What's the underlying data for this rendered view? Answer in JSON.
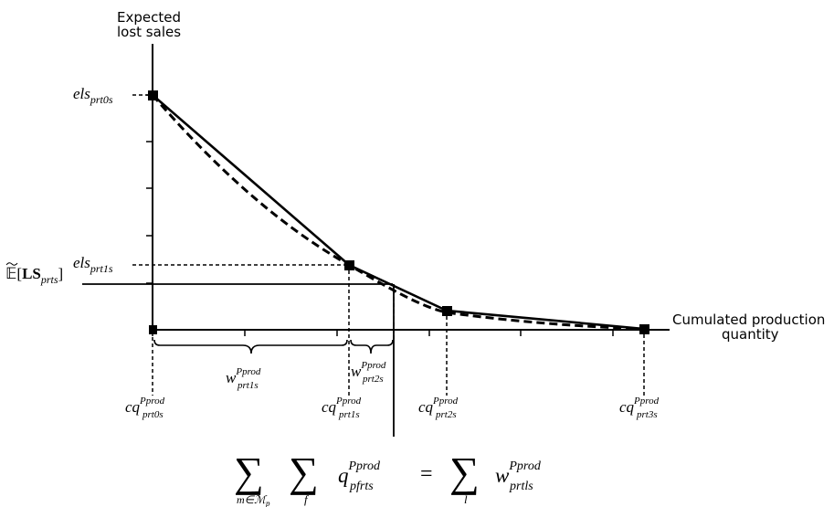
{
  "axes": {
    "y_label_line1": "Expected",
    "y_label_line2": "lost sales",
    "x_label_line1": "Cumulated production",
    "x_label_line2": "quantity"
  },
  "y_labels": {
    "els0": {
      "base": "els",
      "sub": "prt0s"
    },
    "els1": {
      "base": "els",
      "sub": "prt1s"
    },
    "expected": {
      "prefix": "𝔼[",
      "bold": "LS",
      "sub": "prts",
      "suffix": "]"
    }
  },
  "x_labels": [
    {
      "base": "cq",
      "sup": "Pprod",
      "sub": "prt0s"
    },
    {
      "base": "cq",
      "sup": "Pprod",
      "sub": "prt1s"
    },
    {
      "base": "cq",
      "sup": "Pprod",
      "sub": "prt2s"
    },
    {
      "base": "cq",
      "sup": "Pprod",
      "sub": "prt3s"
    }
  ],
  "widths": [
    {
      "base": "w",
      "sup": "Pprod",
      "sub": "prt1s"
    },
    {
      "base": "w",
      "sup": "Pprod",
      "sub": "prt2s"
    }
  ],
  "formula": {
    "sum1_index": "m∈ℳ",
    "sum1_index_sub": "p",
    "sum2_index": "f",
    "q_base": "q",
    "q_sup": "Pprod",
    "q_sub": "pfrts",
    "equals": "=",
    "sum3_index": "l",
    "w_base": "w",
    "w_sup": "Pprod",
    "w_sub": "prtls",
    "sigma": "∑"
  },
  "colors": {
    "ink": "#000000",
    "background": "#ffffff"
  }
}
